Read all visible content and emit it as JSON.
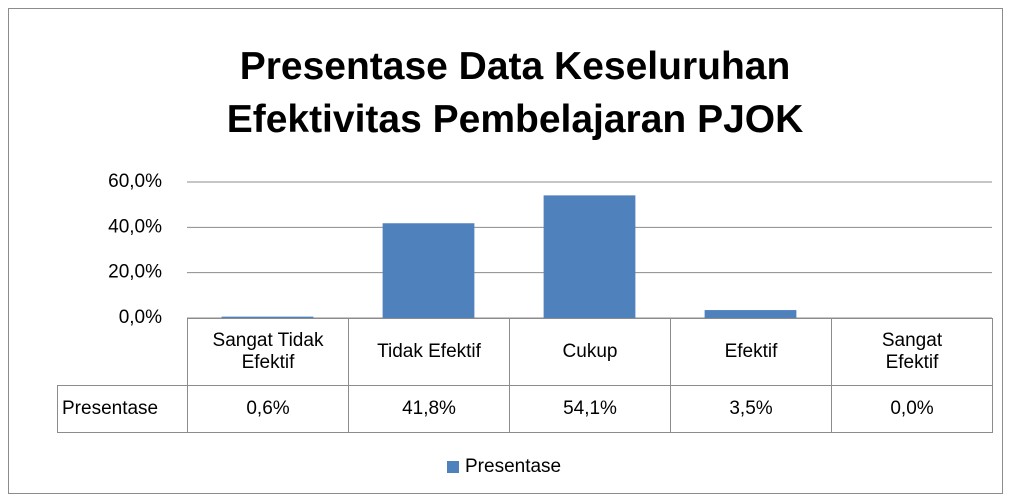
{
  "chart_data": {
    "type": "bar",
    "title": "Presentase Data Keseluruhan Efektivitas Pembelajaran PJOK",
    "categories": [
      "Sangat Tidak Efektif",
      "Tidak Efektif",
      "Cukup",
      "Efektif",
      "Sangat Efektif"
    ],
    "series": [
      {
        "name": "Presentase",
        "color": "#4f81bd",
        "values": [
          0.6,
          41.8,
          54.1,
          3.5,
          0.0
        ],
        "value_labels": [
          "0,6%",
          "41,8%",
          "54,1%",
          "3,5%",
          "0,0%"
        ]
      }
    ],
    "ylim": [
      0,
      60
    ],
    "yticks": [
      {
        "value": 0,
        "label": "0,0%"
      },
      {
        "value": 20,
        "label": "20,0%"
      },
      {
        "value": 40,
        "label": "40,0%"
      },
      {
        "value": 60,
        "label": "60,0%"
      }
    ],
    "grid": true,
    "legend": "bottom"
  }
}
